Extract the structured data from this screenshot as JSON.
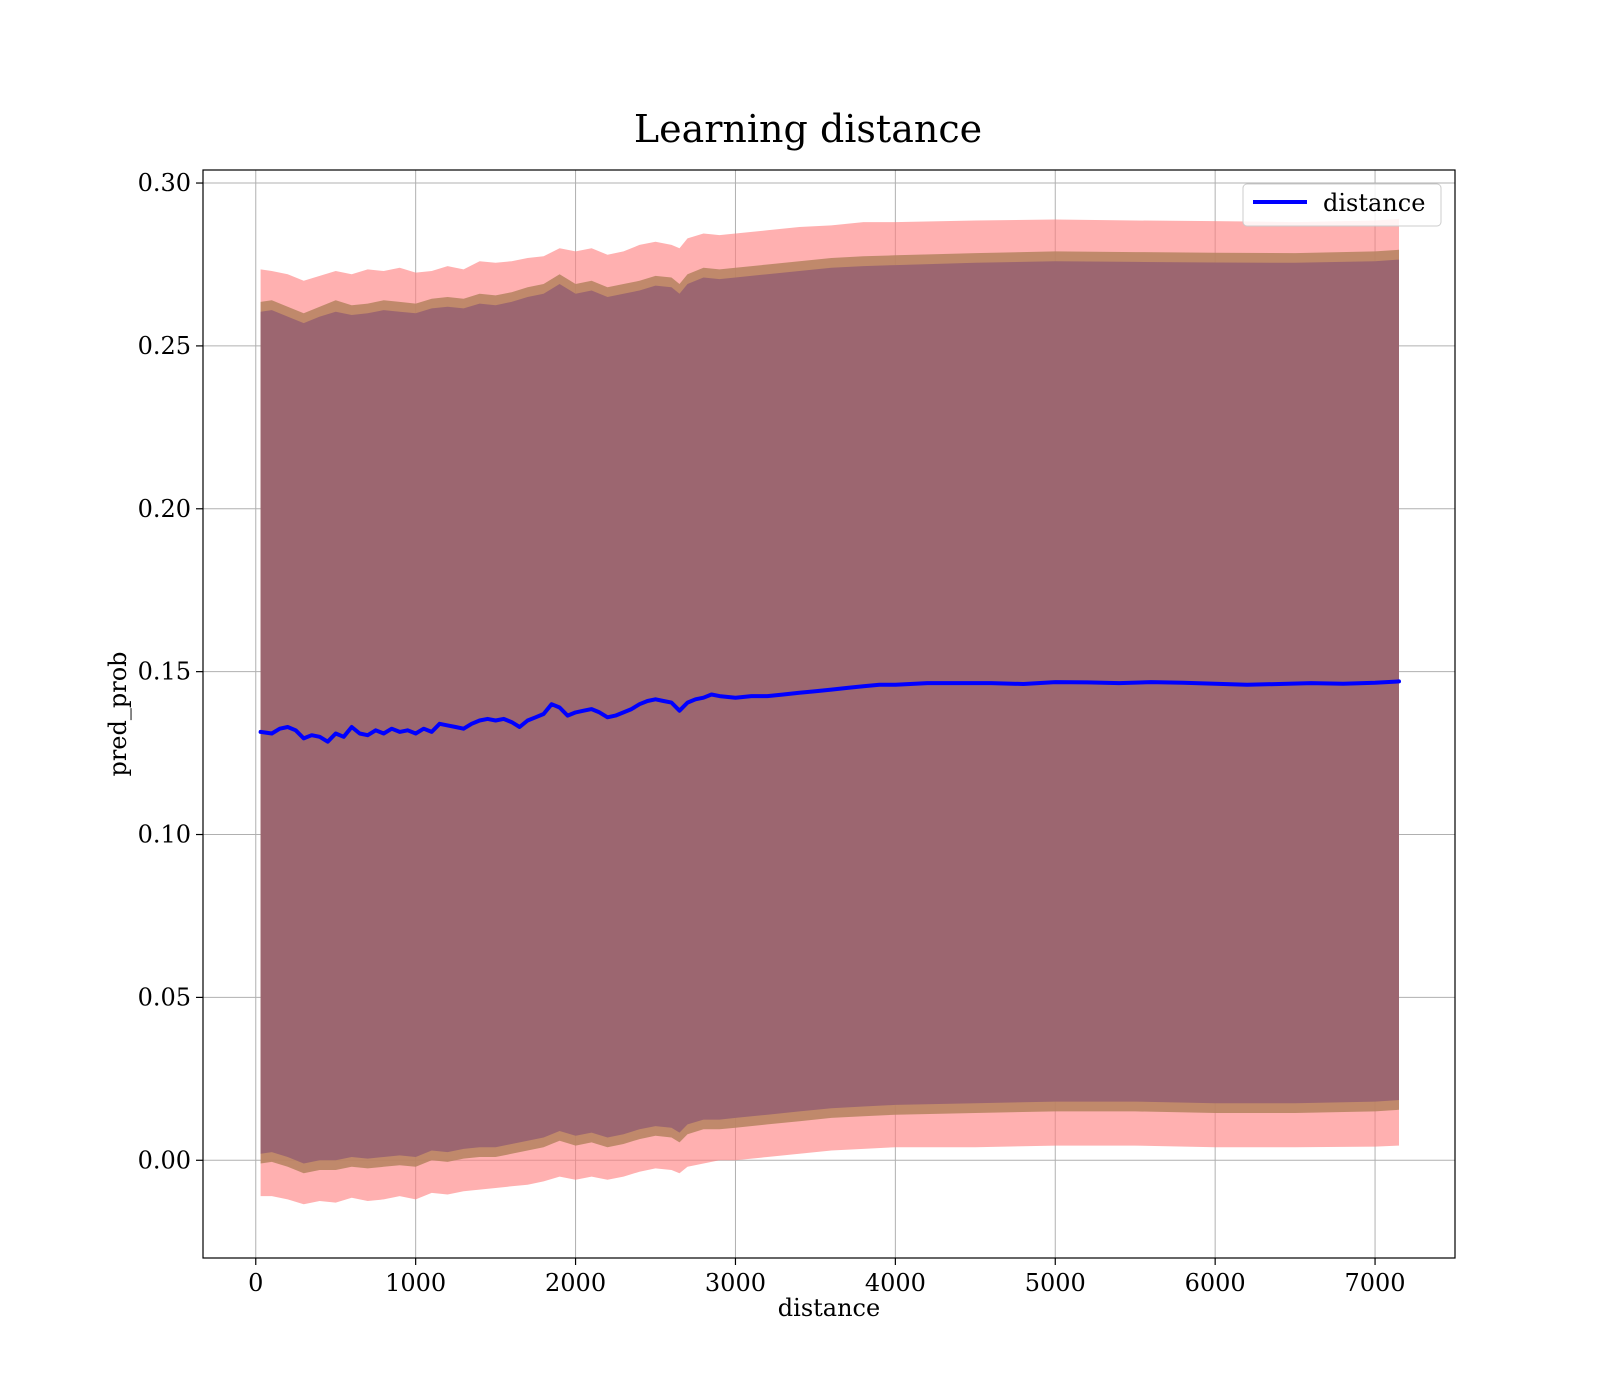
{
  "chart_data": {
    "type": "line",
    "title": "Learning distance",
    "xlabel": "distance",
    "ylabel": "pred_prob",
    "xlim": [
      -330,
      7500
    ],
    "ylim": [
      -0.03,
      0.304
    ],
    "xticks": [
      0,
      1000,
      2000,
      3000,
      4000,
      5000,
      6000,
      7000
    ],
    "yticks": [
      0.0,
      0.05,
      0.1,
      0.15,
      0.2,
      0.25,
      0.3
    ],
    "ytick_labels": [
      "0.00",
      "0.05",
      "0.10",
      "0.15",
      "0.20",
      "0.25",
      "0.30"
    ],
    "grid": true,
    "legend": {
      "position": "top-right",
      "entries": [
        "distance"
      ]
    },
    "colors": {
      "line": "#0000ff",
      "band_outer": "#ff7f7f",
      "band_middle": "#b5835f",
      "band_inner": "#9c6670"
    },
    "series": [
      {
        "name": "distance",
        "x": [
          30,
          100,
          150,
          200,
          250,
          300,
          350,
          400,
          450,
          500,
          550,
          600,
          650,
          700,
          750,
          800,
          850,
          900,
          950,
          1000,
          1050,
          1100,
          1150,
          1200,
          1250,
          1300,
          1350,
          1400,
          1450,
          1500,
          1550,
          1600,
          1650,
          1700,
          1750,
          1800,
          1850,
          1900,
          1950,
          2000,
          2050,
          2100,
          2150,
          2200,
          2250,
          2300,
          2350,
          2400,
          2450,
          2500,
          2550,
          2600,
          2650,
          2700,
          2750,
          2800,
          2850,
          2900,
          3000,
          3100,
          3200,
          3300,
          3400,
          3500,
          3600,
          3700,
          3800,
          3900,
          4000,
          4200,
          4400,
          4600,
          4800,
          5000,
          5200,
          5400,
          5600,
          5800,
          6000,
          6200,
          6400,
          6600,
          6800,
          7000,
          7150
        ],
        "y": [
          0.1315,
          0.131,
          0.1325,
          0.133,
          0.132,
          0.1295,
          0.1305,
          0.13,
          0.1285,
          0.131,
          0.13,
          0.133,
          0.131,
          0.1305,
          0.132,
          0.131,
          0.1325,
          0.1315,
          0.132,
          0.131,
          0.1325,
          0.1315,
          0.134,
          0.1335,
          0.133,
          0.1325,
          0.134,
          0.135,
          0.1355,
          0.135,
          0.1355,
          0.1345,
          0.133,
          0.135,
          0.136,
          0.137,
          0.14,
          0.139,
          0.1365,
          0.1375,
          0.138,
          0.1385,
          0.1375,
          0.136,
          0.1365,
          0.1375,
          0.1385,
          0.14,
          0.141,
          0.1415,
          0.141,
          0.1405,
          0.138,
          0.1405,
          0.1415,
          0.142,
          0.143,
          0.1425,
          0.142,
          0.1425,
          0.1425,
          0.143,
          0.1435,
          0.144,
          0.1445,
          0.145,
          0.1455,
          0.146,
          0.146,
          0.1465,
          0.1465,
          0.1465,
          0.1462,
          0.1468,
          0.1467,
          0.1465,
          0.1468,
          0.1466,
          0.1463,
          0.146,
          0.1462,
          0.1465,
          0.1463,
          0.1466,
          0.147
        ]
      }
    ],
    "bands": [
      {
        "level": "outer",
        "x": [
          30,
          100,
          200,
          300,
          400,
          500,
          600,
          700,
          800,
          900,
          1000,
          1100,
          1200,
          1300,
          1400,
          1500,
          1600,
          1700,
          1800,
          1900,
          2000,
          2100,
          2200,
          2300,
          2400,
          2500,
          2600,
          2650,
          2700,
          2800,
          2900,
          3000,
          3200,
          3400,
          3600,
          3800,
          4000,
          4500,
          5000,
          5500,
          6000,
          6500,
          7000,
          7150
        ],
        "upper": [
          0.2735,
          0.273,
          0.272,
          0.27,
          0.2715,
          0.273,
          0.272,
          0.2735,
          0.273,
          0.274,
          0.2725,
          0.273,
          0.2745,
          0.2735,
          0.276,
          0.2755,
          0.276,
          0.277,
          0.2775,
          0.28,
          0.279,
          0.28,
          0.278,
          0.279,
          0.281,
          0.282,
          0.281,
          0.28,
          0.283,
          0.2845,
          0.284,
          0.2845,
          0.2855,
          0.2865,
          0.287,
          0.288,
          0.288,
          0.2885,
          0.2888,
          0.2885,
          0.2883,
          0.288,
          0.2885,
          0.289
        ],
        "lower": [
          -0.011,
          -0.011,
          -0.012,
          -0.0135,
          -0.0125,
          -0.013,
          -0.0115,
          -0.0125,
          -0.012,
          -0.011,
          -0.012,
          -0.01,
          -0.0105,
          -0.0095,
          -0.009,
          -0.0085,
          -0.008,
          -0.0075,
          -0.0065,
          -0.005,
          -0.006,
          -0.005,
          -0.006,
          -0.005,
          -0.0035,
          -0.0025,
          -0.003,
          -0.004,
          -0.002,
          -0.001,
          0.0,
          0.0,
          0.001,
          0.002,
          0.003,
          0.0035,
          0.004,
          0.004,
          0.0045,
          0.0045,
          0.004,
          0.004,
          0.0042,
          0.0045
        ]
      },
      {
        "level": "middle",
        "x": [
          30,
          100,
          200,
          300,
          400,
          500,
          600,
          700,
          800,
          900,
          1000,
          1100,
          1200,
          1300,
          1400,
          1500,
          1600,
          1700,
          1800,
          1900,
          2000,
          2100,
          2200,
          2300,
          2400,
          2500,
          2600,
          2650,
          2700,
          2800,
          2900,
          3000,
          3200,
          3400,
          3600,
          3800,
          4000,
          4500,
          5000,
          5500,
          6000,
          6500,
          7000,
          7150
        ],
        "upper": [
          0.2635,
          0.264,
          0.262,
          0.26,
          0.262,
          0.264,
          0.2625,
          0.263,
          0.264,
          0.2635,
          0.263,
          0.2645,
          0.265,
          0.2645,
          0.266,
          0.2655,
          0.2665,
          0.268,
          0.269,
          0.272,
          0.269,
          0.27,
          0.268,
          0.269,
          0.27,
          0.2715,
          0.271,
          0.269,
          0.272,
          0.274,
          0.2735,
          0.274,
          0.275,
          0.276,
          0.277,
          0.2775,
          0.2778,
          0.2785,
          0.279,
          0.2788,
          0.2786,
          0.2785,
          0.279,
          0.2795
        ],
        "lower": [
          -0.001,
          -0.0005,
          -0.002,
          -0.004,
          -0.003,
          -0.003,
          -0.002,
          -0.0025,
          -0.002,
          -0.0015,
          -0.002,
          0.0,
          -0.0005,
          0.0005,
          0.001,
          0.001,
          0.002,
          0.003,
          0.004,
          0.006,
          0.0045,
          0.0055,
          0.004,
          0.005,
          0.0065,
          0.0075,
          0.007,
          0.0055,
          0.008,
          0.0095,
          0.0095,
          0.01,
          0.011,
          0.012,
          0.013,
          0.0135,
          0.014,
          0.0145,
          0.015,
          0.015,
          0.0145,
          0.0145,
          0.015,
          0.0155
        ]
      },
      {
        "level": "inner",
        "x": [
          30,
          100,
          200,
          300,
          400,
          500,
          600,
          700,
          800,
          900,
          1000,
          1100,
          1200,
          1300,
          1400,
          1500,
          1600,
          1700,
          1800,
          1900,
          2000,
          2100,
          2200,
          2300,
          2400,
          2500,
          2600,
          2650,
          2700,
          2800,
          2900,
          3000,
          3200,
          3400,
          3600,
          3800,
          4000,
          4500,
          5000,
          5500,
          6000,
          6500,
          7000,
          7150
        ],
        "upper": [
          0.2605,
          0.261,
          0.259,
          0.257,
          0.259,
          0.2605,
          0.2595,
          0.26,
          0.261,
          0.2605,
          0.26,
          0.2615,
          0.262,
          0.2615,
          0.263,
          0.2625,
          0.2635,
          0.265,
          0.266,
          0.269,
          0.266,
          0.267,
          0.265,
          0.266,
          0.267,
          0.2685,
          0.268,
          0.266,
          0.269,
          0.271,
          0.2705,
          0.271,
          0.272,
          0.273,
          0.274,
          0.2745,
          0.2748,
          0.2755,
          0.276,
          0.2758,
          0.2756,
          0.2755,
          0.276,
          0.2765
        ],
        "lower": [
          0.002,
          0.0025,
          0.001,
          -0.001,
          0.0,
          0.0,
          0.001,
          0.0005,
          0.001,
          0.0015,
          0.001,
          0.003,
          0.0025,
          0.0035,
          0.004,
          0.004,
          0.005,
          0.006,
          0.007,
          0.009,
          0.0075,
          0.0085,
          0.007,
          0.008,
          0.0095,
          0.0105,
          0.01,
          0.0085,
          0.011,
          0.0125,
          0.0125,
          0.013,
          0.014,
          0.015,
          0.016,
          0.0165,
          0.017,
          0.0175,
          0.018,
          0.018,
          0.0175,
          0.0175,
          0.018,
          0.0185
        ]
      }
    ]
  }
}
